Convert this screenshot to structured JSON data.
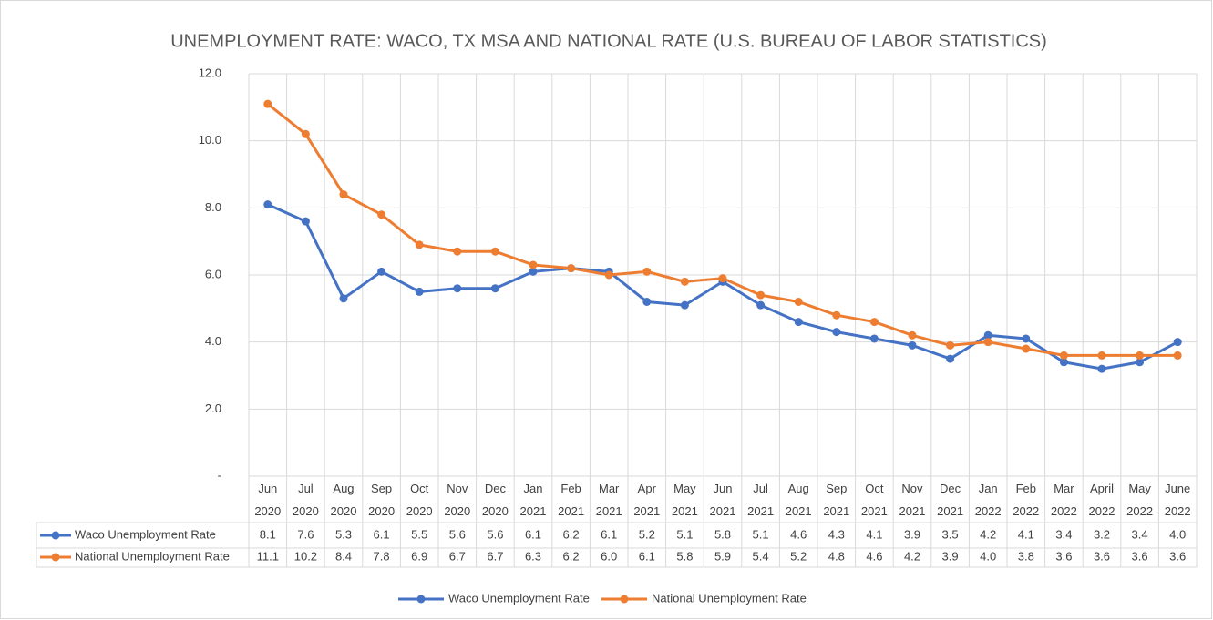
{
  "chart_data": {
    "type": "line",
    "title": "UNEMPLOYMENT RATE:  WACO, TX MSA  AND NATIONAL RATE (U.S. BUREAU OF LABOR STATISTICS)",
    "categories": [
      "Jun 2020",
      "Jul 2020",
      "Aug 2020",
      "Sep 2020",
      "Oct 2020",
      "Nov 2020",
      "Dec 2020",
      "Jan 2021",
      "Feb 2021",
      "Mar 2021",
      "Apr 2021",
      "May 2021",
      "Jun 2021",
      "Jul 2021",
      "Aug 2021",
      "Sep 2021",
      "Oct 2021",
      "Nov 2021",
      "Dec 2021",
      "Jan 2022",
      "Feb 2022",
      "Mar 2022",
      "April 2022",
      "May 2022",
      "June 2022"
    ],
    "series": [
      {
        "name": "Waco Unemployment Rate",
        "color": "#4472c4",
        "values": [
          8.1,
          7.6,
          5.3,
          6.1,
          5.5,
          5.6,
          5.6,
          6.1,
          6.2,
          6.1,
          5.2,
          5.1,
          5.8,
          5.1,
          4.6,
          4.3,
          4.1,
          3.9,
          3.5,
          4.2,
          4.1,
          3.4,
          3.2,
          3.4,
          4.0
        ],
        "value_labels": [
          "8.1",
          "7.6",
          "5.3",
          "6.1",
          "5.5",
          "5.6",
          "5.6",
          "6.1",
          "6.2",
          "6.1",
          "5.2",
          "5.1",
          "5.8",
          "5.1",
          "4.6",
          "4.3",
          "4.1",
          "3.9",
          "3.5",
          "4.2",
          "4.1",
          "3.4",
          "3.2",
          "3.4",
          "4.0"
        ]
      },
      {
        "name": "National Unemployment Rate",
        "color": "#ed7d31",
        "values": [
          11.1,
          10.2,
          8.4,
          7.8,
          6.9,
          6.7,
          6.7,
          6.3,
          6.2,
          6.0,
          6.1,
          5.8,
          5.9,
          5.4,
          5.2,
          4.8,
          4.6,
          4.2,
          3.9,
          4.0,
          3.8,
          3.6,
          3.6,
          3.6,
          3.6
        ],
        "value_labels": [
          "11.1",
          "10.2",
          "8.4",
          "7.8",
          "6.9",
          "6.7",
          "6.7",
          "6.3",
          "6.2",
          "6.0",
          "6.1",
          "5.8",
          "5.9",
          "5.4",
          "5.2",
          "4.8",
          "4.6",
          "4.2",
          "3.9",
          "4.0",
          "3.8",
          "3.6",
          "3.6",
          "3.6",
          "3.6"
        ]
      }
    ],
    "ylim": [
      0,
      12
    ],
    "yticks": [
      {
        "value": 0,
        "label": "-"
      },
      {
        "value": 2,
        "label": "2.0"
      },
      {
        "value": 4,
        "label": "4.0"
      },
      {
        "value": 6,
        "label": "6.0"
      },
      {
        "value": 8,
        "label": "8.0"
      },
      {
        "value": 10,
        "label": "10.0"
      },
      {
        "value": 12,
        "label": "12.0"
      }
    ],
    "grid": true,
    "legend": "bottom"
  }
}
